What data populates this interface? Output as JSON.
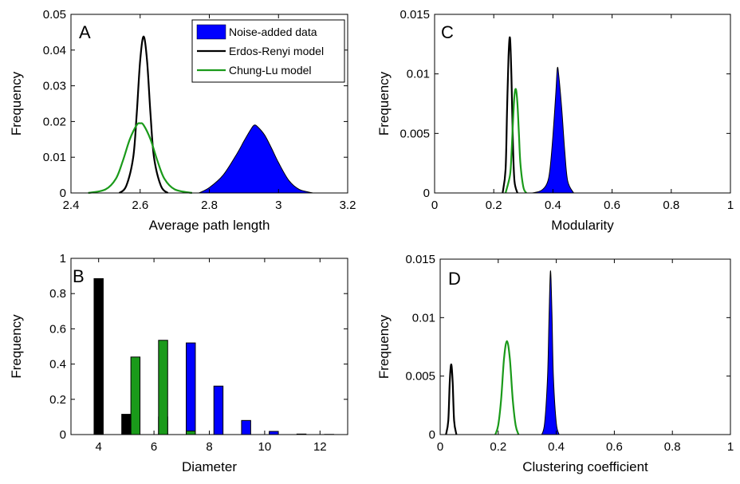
{
  "chart_data": [
    {
      "id": "A",
      "panel_label": "A",
      "type": "area",
      "xlabel": "Average path length",
      "ylabel": "Frequency",
      "xlim": [
        2.4,
        3.2
      ],
      "ylim": [
        0,
        0.05
      ],
      "x_ticks": [
        "2.4",
        "2.6",
        "2.8",
        "3",
        "3.2"
      ],
      "y_ticks": [
        "0",
        "0.01",
        "0.02",
        "0.03",
        "0.04",
        "0.05"
      ],
      "legend": {
        "placement": "top-right",
        "entries": [
          {
            "label": "Noise-added data",
            "style": "fill",
            "color": "#0000ff"
          },
          {
            "label": "Erdos-Renyi model",
            "style": "line",
            "color": "#000000"
          },
          {
            "label": "Chung-Lu model",
            "style": "line",
            "color": "#1a9a1a"
          }
        ]
      },
      "series": [
        {
          "name": "Noise-added data",
          "style": "fill",
          "color": "#0000ff",
          "x": [
            2.77,
            2.8,
            2.84,
            2.88,
            2.9,
            2.92,
            2.93,
            2.94,
            2.96,
            2.98,
            3.0,
            3.03,
            3.06,
            3.1
          ],
          "y": [
            0,
            0.0015,
            0.005,
            0.011,
            0.0145,
            0.0178,
            0.019,
            0.0185,
            0.0162,
            0.0125,
            0.0085,
            0.0035,
            0.001,
            0
          ]
        },
        {
          "name": "Erdos-Renyi model",
          "style": "line",
          "color": "#000000",
          "x": [
            2.54,
            2.56,
            2.58,
            2.59,
            2.6,
            2.61,
            2.62,
            2.63,
            2.64,
            2.66,
            2.68
          ],
          "y": [
            0,
            0.002,
            0.01,
            0.022,
            0.037,
            0.0438,
            0.037,
            0.022,
            0.01,
            0.002,
            0
          ]
        },
        {
          "name": "Chung-Lu model",
          "style": "line",
          "color": "#1a9a1a",
          "x": [
            2.45,
            2.5,
            2.53,
            2.55,
            2.57,
            2.59,
            2.6,
            2.61,
            2.63,
            2.65,
            2.67,
            2.7,
            2.75
          ],
          "y": [
            0,
            0.001,
            0.004,
            0.009,
            0.015,
            0.019,
            0.0195,
            0.019,
            0.015,
            0.009,
            0.004,
            0.001,
            0
          ]
        }
      ]
    },
    {
      "id": "C",
      "panel_label": "C",
      "type": "area",
      "xlabel": "Modularity",
      "ylabel": "Frequency",
      "xlim": [
        0,
        1
      ],
      "ylim": [
        0,
        0.015
      ],
      "x_ticks": [
        "0",
        "0.2",
        "0.4",
        "0.6",
        "0.8",
        "1"
      ],
      "y_ticks": [
        "0",
        "0.005",
        "0.01",
        "0.015"
      ],
      "series": [
        {
          "name": "Noise-added data",
          "style": "fill",
          "color": "#0000ff",
          "x": [
            0.33,
            0.36,
            0.38,
            0.39,
            0.4,
            0.41,
            0.415,
            0.42,
            0.43,
            0.44,
            0.45,
            0.47
          ],
          "y": [
            0,
            0.0002,
            0.0008,
            0.002,
            0.0048,
            0.0085,
            0.0105,
            0.0098,
            0.007,
            0.0035,
            0.001,
            0
          ]
        },
        {
          "name": "Erdos-Renyi model",
          "style": "line",
          "color": "#000000",
          "x": [
            0.23,
            0.24,
            0.245,
            0.25,
            0.255,
            0.26,
            0.265,
            0.27,
            0.28
          ],
          "y": [
            0,
            0.002,
            0.007,
            0.0115,
            0.013,
            0.0095,
            0.004,
            0.001,
            0
          ]
        },
        {
          "name": "Chung-Lu model",
          "style": "line",
          "color": "#1a9a1a",
          "x": [
            0.24,
            0.255,
            0.26,
            0.265,
            0.27,
            0.275,
            0.28,
            0.285,
            0.29,
            0.3,
            0.31
          ],
          "y": [
            0,
            0.0015,
            0.0033,
            0.006,
            0.0082,
            0.0087,
            0.0075,
            0.005,
            0.0025,
            0.0005,
            0
          ]
        }
      ]
    },
    {
      "id": "B",
      "panel_label": "B",
      "type": "bar",
      "xlabel": "Diameter",
      "ylabel": "Frequency",
      "xlim": [
        3,
        13
      ],
      "ylim": [
        0,
        1
      ],
      "x_ticks": [
        "4",
        "6",
        "8",
        "10",
        "12"
      ],
      "y_ticks": [
        "0",
        "0.2",
        "0.4",
        "0.6",
        "0.8",
        "1"
      ],
      "categories": [
        4,
        5,
        6,
        7,
        8,
        9,
        10,
        11,
        12
      ],
      "series": [
        {
          "name": "Erdos-Renyi model",
          "color": "#000000",
          "values": [
            0.885,
            0.115,
            0,
            0,
            0,
            0,
            0,
            0,
            0
          ]
        },
        {
          "name": "Noise-added data",
          "color": "#0000ff",
          "values": [
            0,
            0,
            0.1,
            0.52,
            0.275,
            0.08,
            0.018,
            0.003,
            0.001
          ]
        },
        {
          "name": "Chung-Lu model",
          "color": "#1a9a1a",
          "values": [
            0,
            0.44,
            0.535,
            0.02,
            0,
            0,
            0,
            0,
            0
          ]
        }
      ]
    },
    {
      "id": "D",
      "panel_label": "D",
      "type": "area",
      "xlabel": "Clustering coefficient",
      "ylabel": "Frequency",
      "xlim": [
        0,
        1
      ],
      "ylim": [
        0,
        0.015
      ],
      "x_ticks": [
        "0",
        "0.2",
        "0.4",
        "0.6",
        "0.8",
        "1"
      ],
      "y_ticks": [
        "0",
        "0.005",
        "0.01",
        "0.015"
      ],
      "series": [
        {
          "name": "Noise-added data",
          "style": "fill",
          "color": "#0000ff",
          "x": [
            0.35,
            0.36,
            0.37,
            0.375,
            0.38,
            0.385,
            0.39,
            0.4,
            0.41
          ],
          "y": [
            0,
            0.001,
            0.005,
            0.01,
            0.014,
            0.0105,
            0.005,
            0.001,
            0
          ]
        },
        {
          "name": "Erdos-Renyi model",
          "style": "line",
          "color": "#000000",
          "x": [
            0.02,
            0.028,
            0.033,
            0.038,
            0.043,
            0.048,
            0.056
          ],
          "y": [
            0,
            0.0012,
            0.0045,
            0.006,
            0.0045,
            0.0012,
            0
          ]
        },
        {
          "name": "Chung-Lu model",
          "style": "line",
          "color": "#1a9a1a",
          "x": [
            0.19,
            0.2,
            0.21,
            0.22,
            0.23,
            0.24,
            0.25,
            0.26,
            0.27
          ],
          "y": [
            0,
            0.0008,
            0.003,
            0.0065,
            0.008,
            0.0065,
            0.003,
            0.0008,
            0
          ]
        }
      ]
    }
  ]
}
